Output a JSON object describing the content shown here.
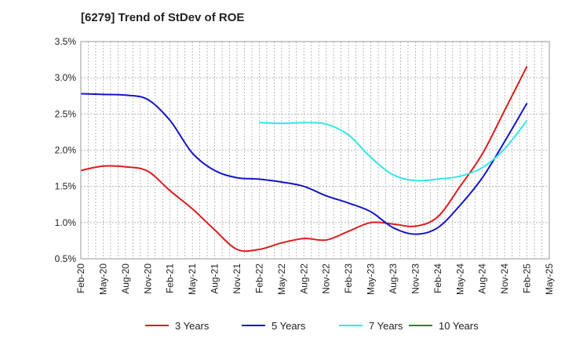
{
  "chart_data": {
    "type": "line",
    "title": "[6279]  Trend of StDev of ROE",
    "xlabel": "",
    "ylabel": "",
    "x_tick_labels": [
      "Feb-20",
      "May-20",
      "Aug-20",
      "Nov-20",
      "Feb-21",
      "May-21",
      "Aug-21",
      "Nov-21",
      "Feb-22",
      "May-22",
      "Aug-22",
      "Nov-22",
      "Feb-23",
      "May-23",
      "Aug-23",
      "Nov-23",
      "Feb-24",
      "May-24",
      "Aug-24",
      "Nov-24",
      "Feb-25",
      "May-25"
    ],
    "y_tick_labels": [
      "0.5%",
      "1.0%",
      "1.5%",
      "2.0%",
      "2.5%",
      "3.0%",
      "3.5%"
    ],
    "ylim": [
      0.5,
      3.5
    ],
    "grid": true,
    "legend_position": "bottom",
    "series": [
      {
        "name": "3 Years",
        "color": "#dd1c1c",
        "values": [
          1.72,
          1.78,
          1.77,
          1.71,
          1.44,
          1.19,
          0.9,
          0.63,
          0.63,
          0.72,
          0.78,
          0.76,
          0.88,
          1.0,
          0.98,
          0.95,
          1.08,
          1.5,
          1.95,
          2.55,
          3.16,
          null
        ]
      },
      {
        "name": "5 Years",
        "color": "#1414c8",
        "values": [
          2.78,
          2.77,
          2.76,
          2.7,
          2.41,
          1.96,
          1.72,
          1.62,
          1.6,
          1.56,
          1.5,
          1.37,
          1.27,
          1.15,
          0.93,
          0.84,
          0.93,
          1.24,
          1.62,
          2.12,
          2.65,
          null
        ]
      },
      {
        "name": "7 Years",
        "color": "#33e6e6",
        "values": [
          null,
          null,
          null,
          null,
          null,
          null,
          null,
          null,
          2.38,
          2.37,
          2.38,
          2.36,
          2.21,
          1.9,
          1.66,
          1.58,
          1.6,
          1.64,
          1.76,
          2.02,
          2.41,
          null
        ]
      },
      {
        "name": "10 Years",
        "color": "#1f8c1f",
        "values": [
          null,
          null,
          null,
          null,
          null,
          null,
          null,
          null,
          null,
          null,
          null,
          null,
          null,
          null,
          null,
          null,
          null,
          null,
          null,
          null,
          null,
          null
        ]
      }
    ]
  }
}
